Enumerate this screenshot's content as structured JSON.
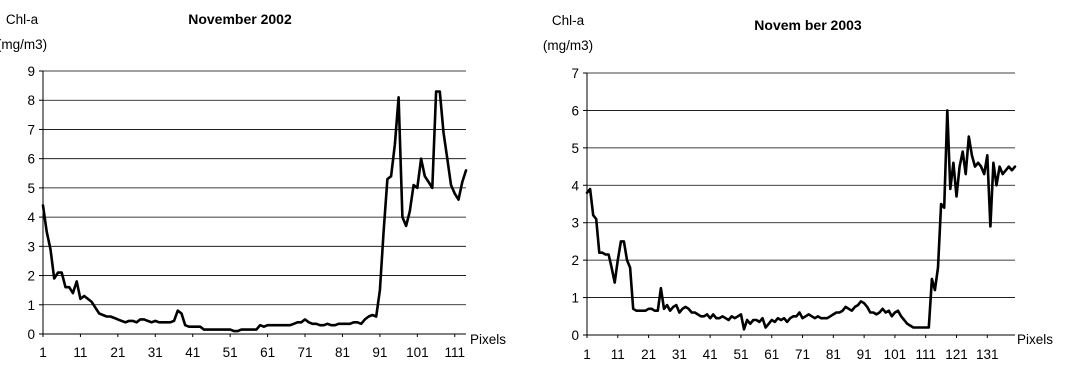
{
  "chart_data": [
    {
      "type": "line",
      "title": "November 2002",
      "ylabel_line1": "Chl-a",
      "ylabel_line2": "(mg/m3)",
      "xlabel": "Pixels",
      "ylim": [
        0,
        9
      ],
      "yticks": [
        0,
        1,
        2,
        3,
        4,
        5,
        6,
        7,
        8,
        9
      ],
      "xlim": [
        1,
        114
      ],
      "xticks": [
        1,
        11,
        21,
        31,
        41,
        51,
        61,
        71,
        81,
        91,
        101,
        111
      ],
      "grid": "horizontal",
      "line_color": "#000000",
      "series": [
        {
          "x": [
            1,
            2,
            3,
            4,
            5,
            6,
            7,
            8,
            9,
            10,
            11,
            12,
            13,
            14,
            15,
            16,
            17,
            18,
            19,
            20,
            21,
            22,
            23,
            24,
            25,
            26,
            27,
            28,
            29,
            30,
            31,
            32,
            33,
            34,
            35,
            36,
            37,
            38,
            39,
            40,
            41,
            42,
            43,
            44,
            45,
            46,
            47,
            48,
            49,
            50,
            51,
            52,
            53,
            54,
            55,
            56,
            57,
            58,
            59,
            60,
            61,
            62,
            63,
            64,
            65,
            66,
            67,
            68,
            69,
            70,
            71,
            72,
            73,
            74,
            75,
            76,
            77,
            78,
            79,
            80,
            81,
            82,
            83,
            84,
            85,
            86,
            87,
            88,
            89,
            90,
            91,
            92,
            93,
            94,
            95,
            96,
            97,
            98,
            99,
            100,
            101,
            102,
            103,
            104,
            105,
            106,
            107,
            108,
            109,
            110,
            111,
            112,
            113,
            114
          ],
          "values": [
            4.4,
            3.5,
            2.9,
            1.9,
            2.1,
            2.1,
            1.6,
            1.6,
            1.4,
            1.8,
            1.2,
            1.3,
            1.2,
            1.1,
            0.9,
            0.7,
            0.65,
            0.6,
            0.6,
            0.55,
            0.5,
            0.45,
            0.4,
            0.45,
            0.45,
            0.4,
            0.5,
            0.5,
            0.45,
            0.4,
            0.45,
            0.4,
            0.4,
            0.4,
            0.4,
            0.45,
            0.8,
            0.7,
            0.3,
            0.25,
            0.25,
            0.25,
            0.25,
            0.15,
            0.15,
            0.15,
            0.15,
            0.15,
            0.15,
            0.15,
            0.15,
            0.1,
            0.1,
            0.15,
            0.15,
            0.15,
            0.15,
            0.15,
            0.3,
            0.25,
            0.3,
            0.3,
            0.3,
            0.3,
            0.3,
            0.3,
            0.3,
            0.35,
            0.4,
            0.4,
            0.5,
            0.4,
            0.35,
            0.35,
            0.3,
            0.3,
            0.35,
            0.3,
            0.3,
            0.35,
            0.35,
            0.35,
            0.35,
            0.4,
            0.4,
            0.35,
            0.5,
            0.6,
            0.65,
            0.6,
            1.5,
            3.5,
            5.3,
            5.4,
            6.5,
            8.1,
            4.0,
            3.7,
            4.2,
            5.1,
            5.0,
            6.0,
            5.4,
            5.2,
            5.0,
            8.3,
            8.3,
            6.9,
            6.0,
            5.1,
            4.8,
            4.6,
            5.2,
            5.6
          ]
        }
      ]
    },
    {
      "type": "line",
      "title": "Novem ber 2003",
      "ylabel_line1": "Chl-a",
      "ylabel_line2": "(mg/m3)",
      "xlabel": "Pixels",
      "ylim": [
        0,
        7
      ],
      "yticks": [
        0,
        1,
        2,
        3,
        4,
        5,
        6,
        7
      ],
      "xlim": [
        1,
        140
      ],
      "xticks": [
        1,
        11,
        21,
        31,
        41,
        51,
        61,
        71,
        81,
        91,
        101,
        111,
        121,
        131
      ],
      "xtick_labels": [
        "1",
        "11",
        "21",
        "31",
        "41",
        "51",
        "61",
        "71",
        "81",
        "91",
        "101",
        "111",
        "121",
        "131"
      ],
      "grid": "horizontal",
      "line_color": "#000000",
      "series": [
        {
          "x": [
            1,
            2,
            3,
            4,
            5,
            6,
            7,
            8,
            9,
            10,
            11,
            12,
            13,
            14,
            15,
            16,
            17,
            18,
            19,
            20,
            21,
            22,
            23,
            24,
            25,
            26,
            27,
            28,
            29,
            30,
            31,
            32,
            33,
            34,
            35,
            36,
            37,
            38,
            39,
            40,
            41,
            42,
            43,
            44,
            45,
            46,
            47,
            48,
            49,
            50,
            51,
            52,
            53,
            54,
            55,
            56,
            57,
            58,
            59,
            60,
            61,
            62,
            63,
            64,
            65,
            66,
            67,
            68,
            69,
            70,
            71,
            72,
            73,
            74,
            75,
            76,
            77,
            78,
            79,
            80,
            81,
            82,
            83,
            84,
            85,
            86,
            87,
            88,
            89,
            90,
            91,
            92,
            93,
            94,
            95,
            96,
            97,
            98,
            99,
            100,
            101,
            102,
            103,
            104,
            105,
            106,
            107,
            108,
            109,
            110,
            111,
            112,
            113,
            114,
            115,
            116,
            117,
            118,
            119,
            120,
            121,
            122,
            123,
            124,
            125,
            126,
            127,
            128,
            129,
            130,
            131,
            132,
            133,
            134,
            135,
            136,
            137,
            138,
            139,
            140
          ],
          "values": [
            3.8,
            3.9,
            3.2,
            3.1,
            2.2,
            2.2,
            2.15,
            2.15,
            1.8,
            1.4,
            2.0,
            2.5,
            2.5,
            2.0,
            1.8,
            0.7,
            0.65,
            0.65,
            0.65,
            0.65,
            0.7,
            0.7,
            0.65,
            0.65,
            1.25,
            0.7,
            0.8,
            0.65,
            0.75,
            0.8,
            0.6,
            0.7,
            0.75,
            0.7,
            0.6,
            0.6,
            0.55,
            0.5,
            0.5,
            0.55,
            0.45,
            0.55,
            0.45,
            0.45,
            0.5,
            0.45,
            0.4,
            0.5,
            0.45,
            0.5,
            0.55,
            0.15,
            0.4,
            0.3,
            0.4,
            0.4,
            0.35,
            0.45,
            0.2,
            0.3,
            0.4,
            0.35,
            0.45,
            0.4,
            0.45,
            0.35,
            0.45,
            0.5,
            0.5,
            0.6,
            0.45,
            0.5,
            0.55,
            0.5,
            0.45,
            0.5,
            0.45,
            0.45,
            0.45,
            0.5,
            0.55,
            0.6,
            0.6,
            0.65,
            0.75,
            0.7,
            0.65,
            0.75,
            0.8,
            0.9,
            0.85,
            0.75,
            0.6,
            0.6,
            0.55,
            0.6,
            0.7,
            0.6,
            0.65,
            0.5,
            0.6,
            0.65,
            0.5,
            0.4,
            0.3,
            0.25,
            0.2,
            0.2,
            0.2,
            0.2,
            0.2,
            0.2,
            1.5,
            1.2,
            1.8,
            3.5,
            3.4,
            6.0,
            3.9,
            4.6,
            3.7,
            4.5,
            4.9,
            4.3,
            5.3,
            4.8,
            4.5,
            4.6,
            4.5,
            4.3,
            4.8,
            2.9,
            4.6,
            4.0,
            4.5,
            4.3,
            4.4,
            4.5,
            4.4,
            4.5
          ]
        }
      ]
    }
  ]
}
